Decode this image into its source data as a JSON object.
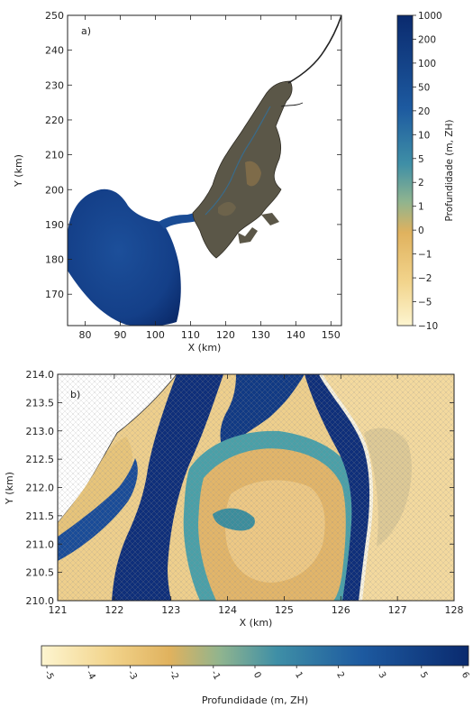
{
  "chart_data": [
    {
      "type": "heatmap",
      "panel_label": "a)",
      "xlabel": "X (km)",
      "ylabel": "Y (km)",
      "xlim": [
        75,
        153
      ],
      "ylim": [
        161,
        250
      ],
      "xticks": [
        80,
        90,
        100,
        110,
        120,
        130,
        140,
        150
      ],
      "yticks": [
        170,
        180,
        190,
        200,
        210,
        220,
        230,
        240,
        250
      ],
      "xtick_labels": [
        "80",
        "90",
        "100",
        "110",
        "120",
        "130",
        "140",
        "150"
      ],
      "ytick_labels": [
        "170",
        "180",
        "190",
        "200",
        "210",
        "220",
        "230",
        "240",
        "250"
      ],
      "grid": false,
      "colorbar": {
        "label": "Profundidade (m, ZH)",
        "orientation": "vertical",
        "tick_labels": [
          "1000",
          "200",
          "100",
          "50",
          "20",
          "10",
          "5",
          "2",
          "1",
          "0",
          "−1",
          "−2",
          "−5",
          "−10"
        ]
      }
    },
    {
      "type": "heatmap",
      "panel_label": "b)",
      "xlabel": "X (km)",
      "ylabel": "Y (km)",
      "xlim": [
        121,
        128
      ],
      "ylim": [
        210.0,
        214.0
      ],
      "xticks": [
        121,
        122,
        123,
        124,
        125,
        126,
        127,
        128
      ],
      "yticks": [
        210.0,
        210.5,
        211.0,
        211.5,
        212.0,
        212.5,
        213.0,
        213.5,
        214.0
      ],
      "xtick_labels": [
        "121",
        "122",
        "123",
        "124",
        "125",
        "126",
        "127",
        "128"
      ],
      "ytick_labels": [
        "210.0",
        "210.5",
        "211.0",
        "211.5",
        "212.0",
        "212.5",
        "213.0",
        "213.5",
        "214.0"
      ],
      "grid": false,
      "colorbar": {
        "label": "Profundidade (m, ZH)",
        "orientation": "horizontal",
        "tick_labels": [
          "-5",
          "-4",
          "-3",
          "-2",
          "-1",
          "0",
          "1",
          "2",
          "3",
          "5",
          "6"
        ]
      }
    }
  ],
  "colors": {
    "deep": "#0a2a6e",
    "mid_blue": "#1d4f9c",
    "teal": "#3f8fa6",
    "sage": "#8fb48f",
    "ochre": "#e0b25e",
    "sand": "#f2d48c",
    "cream": "#fdf5d0",
    "land_gray": "#5b5748",
    "mesh_dot": "#8a8a8a"
  }
}
